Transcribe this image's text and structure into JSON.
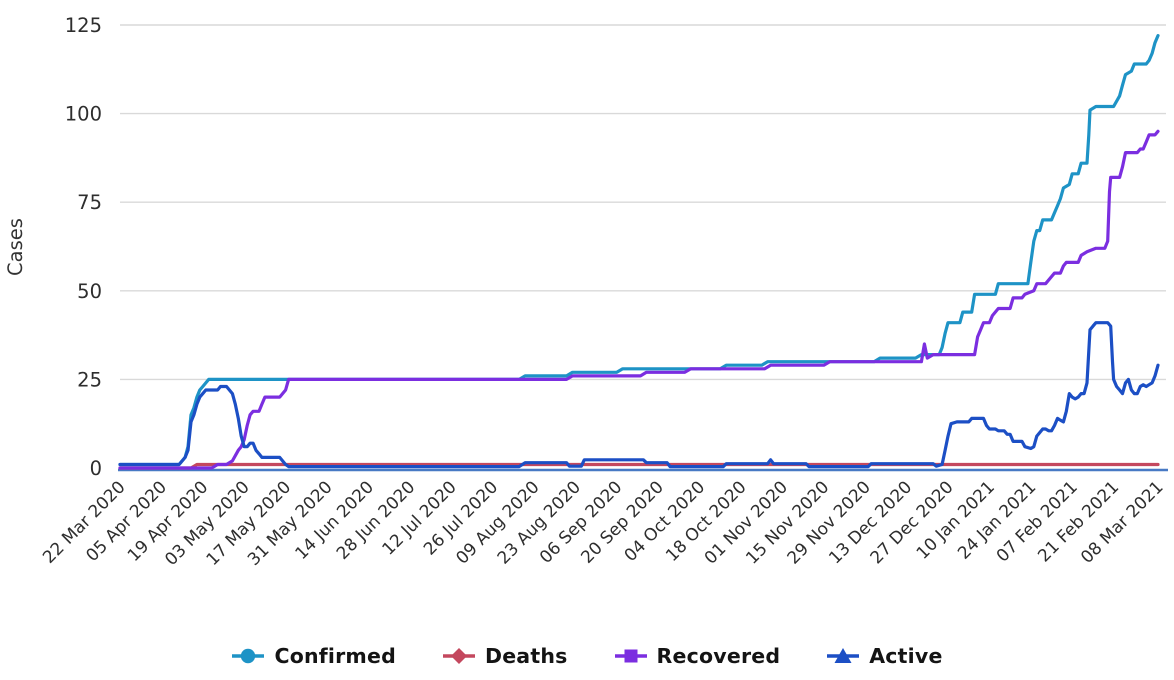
{
  "chart_data": {
    "type": "line",
    "title": "",
    "xlabel": "",
    "ylabel": "Cases",
    "ylim": [
      0,
      125
    ],
    "yticks": [
      0,
      25,
      50,
      75,
      100,
      125
    ],
    "grid": "horizontal-on",
    "legend_position": "bottom-center",
    "x_unit": "days since 22 Mar 2020",
    "x_range_days": [
      0,
      351
    ],
    "xtick_days": [
      0,
      14,
      28,
      42,
      56,
      70,
      84,
      98,
      112,
      126,
      140,
      154,
      168,
      182,
      196,
      210,
      224,
      238,
      252,
      266,
      280,
      294,
      308,
      322,
      336,
      351
    ],
    "xtick_labels": [
      "22 Mar 2020",
      "05 Apr 2020",
      "19 Apr 2020",
      "03 May 2020",
      "17 May 2020",
      "31 May 2020",
      "14 Jun 2020",
      "28 Jun 2020",
      "12 Jul 2020",
      "26 Jul 2020",
      "09 Aug 2020",
      "23 Aug 2020",
      "06 Sep 2020",
      "20 Sep 2020",
      "04 Oct 2020",
      "18 Oct 2020",
      "01 Nov 2020",
      "15 Nov 2020",
      "29 Nov 2020",
      "13 Dec 2020",
      "27 Dec 2020",
      "10 Jan 2021",
      "24 Jan 2021",
      "07 Feb 2021",
      "21 Feb 2021",
      "08 Mar 2021"
    ],
    "series": [
      {
        "name": "Confirmed",
        "color": "#1e93c6",
        "marker": "circle",
        "final_value": 122,
        "points": [
          [
            0,
            1
          ],
          [
            20,
            1
          ],
          [
            22,
            3
          ],
          [
            23,
            6
          ],
          [
            24,
            15
          ],
          [
            25,
            17
          ],
          [
            26,
            20
          ],
          [
            27,
            22
          ],
          [
            28,
            23
          ],
          [
            29,
            24
          ],
          [
            30,
            25
          ],
          [
            135,
            25
          ],
          [
            137,
            26
          ],
          [
            151,
            26
          ],
          [
            153,
            27
          ],
          [
            168,
            27
          ],
          [
            170,
            28
          ],
          [
            203,
            28
          ],
          [
            205,
            29
          ],
          [
            217,
            29
          ],
          [
            219,
            30
          ],
          [
            255,
            30
          ],
          [
            257,
            31
          ],
          [
            269,
            31
          ],
          [
            271,
            32
          ],
          [
            277,
            32
          ],
          [
            278,
            34
          ],
          [
            279,
            38
          ],
          [
            280,
            41
          ],
          [
            284,
            41
          ],
          [
            285,
            44
          ],
          [
            288,
            44
          ],
          [
            289,
            49
          ],
          [
            296,
            49
          ],
          [
            297,
            52
          ],
          [
            307,
            52
          ],
          [
            308,
            58
          ],
          [
            309,
            64
          ],
          [
            310,
            67
          ],
          [
            311,
            67
          ],
          [
            312,
            70
          ],
          [
            315,
            70
          ],
          [
            316,
            72
          ],
          [
            317,
            74
          ],
          [
            318,
            76
          ],
          [
            319,
            79
          ],
          [
            321,
            80
          ],
          [
            322,
            83
          ],
          [
            324,
            83
          ],
          [
            325,
            86
          ],
          [
            327,
            86
          ],
          [
            327.6,
            94
          ],
          [
            328,
            101
          ],
          [
            330,
            102
          ],
          [
            336,
            102
          ],
          [
            338,
            105
          ],
          [
            339,
            108
          ],
          [
            340,
            111
          ],
          [
            342,
            112
          ],
          [
            343,
            114
          ],
          [
            347,
            114
          ],
          [
            348,
            115
          ],
          [
            349,
            117
          ],
          [
            350,
            120
          ],
          [
            351,
            122
          ]
        ]
      },
      {
        "name": "Deaths",
        "color": "#c4485e",
        "marker": "diamond",
        "final_value": 1,
        "points": [
          [
            0,
            0
          ],
          [
            24,
            0
          ],
          [
            26,
            1
          ],
          [
            351,
            1
          ]
        ]
      },
      {
        "name": "Recovered",
        "color": "#7b2ee0",
        "marker": "square",
        "final_value": 95,
        "points": [
          [
            0,
            0
          ],
          [
            31,
            0
          ],
          [
            33,
            1
          ],
          [
            36,
            1
          ],
          [
            38,
            2
          ],
          [
            40,
            5
          ],
          [
            41,
            6
          ],
          [
            42,
            8
          ],
          [
            43,
            12
          ],
          [
            44,
            15
          ],
          [
            45,
            16
          ],
          [
            47,
            16
          ],
          [
            48,
            18
          ],
          [
            49,
            20
          ],
          [
            54,
            20
          ],
          [
            55,
            21
          ],
          [
            56,
            22
          ],
          [
            57,
            25
          ],
          [
            151,
            25
          ],
          [
            153,
            26
          ],
          [
            176,
            26
          ],
          [
            178,
            27
          ],
          [
            191,
            27
          ],
          [
            193,
            28
          ],
          [
            218,
            28
          ],
          [
            220,
            29
          ],
          [
            238,
            29
          ],
          [
            240,
            30
          ],
          [
            270,
            30
          ],
          [
            271,
            30
          ],
          [
            272,
            35
          ],
          [
            273,
            31
          ],
          [
            275,
            32
          ],
          [
            289,
            32
          ],
          [
            290,
            37
          ],
          [
            291,
            39
          ],
          [
            292,
            41
          ],
          [
            294,
            41
          ],
          [
            295,
            43
          ],
          [
            297,
            45
          ],
          [
            301,
            45
          ],
          [
            302,
            48
          ],
          [
            305,
            48
          ],
          [
            306,
            49
          ],
          [
            309,
            50
          ],
          [
            310,
            52
          ],
          [
            313,
            52
          ],
          [
            315,
            54
          ],
          [
            316,
            55
          ],
          [
            318,
            55
          ],
          [
            319,
            57
          ],
          [
            320,
            58
          ],
          [
            324,
            58
          ],
          [
            325,
            60
          ],
          [
            327,
            61
          ],
          [
            330,
            62
          ],
          [
            333,
            62
          ],
          [
            334,
            64
          ],
          [
            334.6,
            78
          ],
          [
            335,
            82
          ],
          [
            338,
            82
          ],
          [
            339,
            85
          ],
          [
            340,
            89
          ],
          [
            344,
            89
          ],
          [
            345,
            90
          ],
          [
            346,
            90
          ],
          [
            347,
            92
          ],
          [
            348,
            94
          ],
          [
            350,
            94
          ],
          [
            351,
            95
          ]
        ]
      },
      {
        "name": "Active",
        "color": "#1c4fc5",
        "marker": "triangle",
        "final_value": 29,
        "points": [
          [
            0,
            1
          ],
          [
            20,
            1
          ],
          [
            22,
            3
          ],
          [
            23,
            5
          ],
          [
            24,
            13
          ],
          [
            25,
            15
          ],
          [
            26,
            18
          ],
          [
            27,
            20
          ],
          [
            28,
            21
          ],
          [
            29,
            22
          ],
          [
            33,
            22
          ],
          [
            34,
            23
          ],
          [
            36,
            23
          ],
          [
            37,
            22
          ],
          [
            38,
            21
          ],
          [
            39,
            18
          ],
          [
            40,
            14
          ],
          [
            41,
            9
          ],
          [
            42,
            6
          ],
          [
            43,
            6
          ],
          [
            44,
            7
          ],
          [
            45,
            7
          ],
          [
            46,
            5
          ],
          [
            47,
            4
          ],
          [
            48,
            3
          ],
          [
            54,
            3
          ],
          [
            55,
            2
          ],
          [
            56,
            1
          ],
          [
            57,
            0.4
          ],
          [
            135,
            0.4
          ],
          [
            137,
            1.5
          ],
          [
            151,
            1.5
          ],
          [
            152,
            0.5
          ],
          [
            156,
            0.5
          ],
          [
            157,
            2.3
          ],
          [
            177,
            2.3
          ],
          [
            178,
            1.5
          ],
          [
            185,
            1.5
          ],
          [
            186,
            0.4
          ],
          [
            204,
            0.4
          ],
          [
            205,
            1.2
          ],
          [
            219,
            1.2
          ],
          [
            220,
            2.3
          ],
          [
            221,
            1.2
          ],
          [
            232,
            1.2
          ],
          [
            233,
            0.4
          ],
          [
            253,
            0.4
          ],
          [
            254,
            1.2
          ],
          [
            275,
            1.2
          ],
          [
            276,
            0.5
          ],
          [
            278,
            1
          ],
          [
            279,
            5
          ],
          [
            280,
            9
          ],
          [
            281,
            12.5
          ],
          [
            283,
            13
          ],
          [
            287,
            13
          ],
          [
            288,
            14
          ],
          [
            292,
            14
          ],
          [
            293,
            12
          ],
          [
            294,
            11
          ],
          [
            296,
            11
          ],
          [
            297,
            10.5
          ],
          [
            299,
            10.5
          ],
          [
            300,
            9.5
          ],
          [
            301,
            9.5
          ],
          [
            302,
            7.5
          ],
          [
            305,
            7.5
          ],
          [
            306,
            6
          ],
          [
            308,
            5.5
          ],
          [
            309,
            6
          ],
          [
            310,
            9
          ],
          [
            311,
            10
          ],
          [
            312,
            11
          ],
          [
            313,
            11
          ],
          [
            314,
            10.5
          ],
          [
            315,
            10.5
          ],
          [
            316,
            12
          ],
          [
            317,
            14
          ],
          [
            318,
            13.5
          ],
          [
            319,
            13
          ],
          [
            320,
            16
          ],
          [
            321,
            21
          ],
          [
            322,
            20
          ],
          [
            323,
            19.5
          ],
          [
            324,
            20
          ],
          [
            325,
            21
          ],
          [
            326,
            21
          ],
          [
            327,
            24
          ],
          [
            327.6,
            33
          ],
          [
            328,
            39
          ],
          [
            329,
            40
          ],
          [
            330,
            41
          ],
          [
            334,
            41
          ],
          [
            335,
            40
          ],
          [
            335.6,
            30
          ],
          [
            336,
            25
          ],
          [
            337,
            23
          ],
          [
            338,
            22
          ],
          [
            339,
            21
          ],
          [
            340,
            24
          ],
          [
            341,
            25
          ],
          [
            342,
            22
          ],
          [
            343,
            21
          ],
          [
            344,
            21
          ],
          [
            345,
            23
          ],
          [
            346,
            23.5
          ],
          [
            347,
            23
          ],
          [
            348,
            23.5
          ],
          [
            349,
            24
          ],
          [
            350,
            26
          ],
          [
            351,
            29
          ]
        ]
      }
    ],
    "styles": {
      "grid_color": "#d9d9d9",
      "axis_line_color": "#4779c4",
      "tick_label_color": "#2e2e2e",
      "ylabel_color": "#333333",
      "legend_text_color": "#141414",
      "background": "#ffffff",
      "line_width": 3.2
    }
  }
}
